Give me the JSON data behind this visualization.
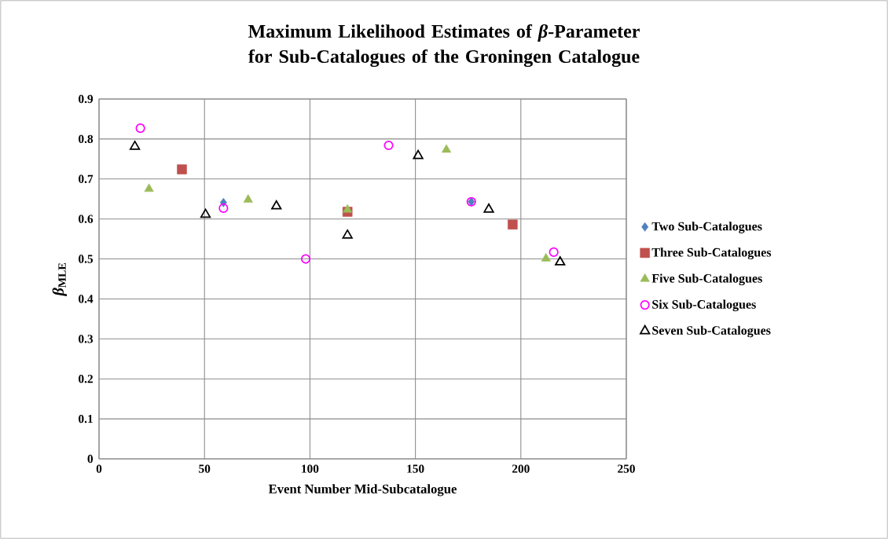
{
  "chart_data": {
    "type": "scatter",
    "title": "Maximum Likelihood Estimates of *β*-Parameter for Sub-Catalogues of the Groningen Catalogue",
    "xlabel": "Event Number Mid-Subcatalogue",
    "ylabel": "*β*$_{MLE}$",
    "xlim": [
      0,
      250
    ],
    "xticks": [
      0,
      50,
      100,
      150,
      200,
      250
    ],
    "ylim": [
      0,
      0.9
    ],
    "yticks": [
      0,
      0.1,
      0.2,
      0.3,
      0.4,
      0.5,
      0.6,
      0.7,
      0.8,
      0.9
    ],
    "grid": true,
    "legend": "right",
    "series": [
      {
        "name": "Two Sub-Catalogues",
        "color": "#4f81bd",
        "marker": "diamond",
        "x": [
          59.0,
          176.5
        ],
        "values": [
          0.641,
          0.643
        ]
      },
      {
        "name": "Three Sub-Catalogues",
        "color": "#c0504d",
        "marker": "square",
        "x": [
          39.3,
          117.8,
          196.1
        ],
        "values": [
          0.724,
          0.618,
          0.586
        ]
      },
      {
        "name": "Five Sub-Catalogues",
        "color": "#9bbb59",
        "marker": "triangle",
        "x": [
          23.7,
          70.7,
          117.8,
          164.7,
          211.9
        ],
        "values": [
          0.675,
          0.648,
          0.623,
          0.773,
          0.501
        ]
      },
      {
        "name": "Six Sub-Catalogues",
        "color": "#ff00ff",
        "marker": "circle",
        "x": [
          19.6,
          59.0,
          98.0,
          137.3,
          176.5,
          215.6
        ],
        "values": [
          0.827,
          0.627,
          0.5,
          0.784,
          0.643,
          0.517
        ]
      },
      {
        "name": "Seven Sub-Catalogues",
        "color": "#000000",
        "marker": "triangle",
        "x": [
          17.0,
          50.5,
          84.1,
          117.8,
          151.3,
          184.8,
          218.6
        ],
        "values": [
          0.781,
          0.611,
          0.632,
          0.559,
          0.758,
          0.624,
          0.492
        ]
      }
    ]
  }
}
